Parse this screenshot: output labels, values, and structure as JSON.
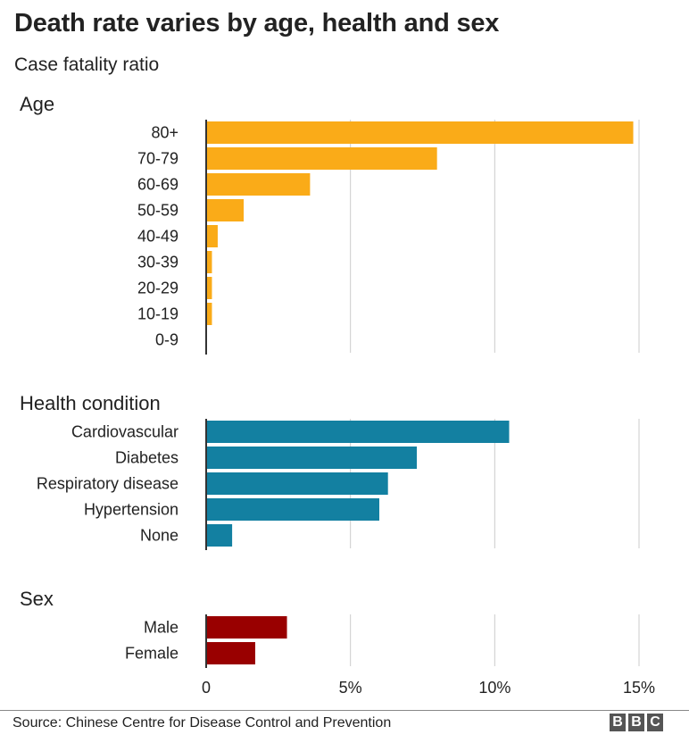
{
  "title": "Death rate varies by age, health and sex",
  "subtitle": "Case fatality ratio",
  "source": "Source: Chinese Centre for Disease Control and Prevention",
  "logo": [
    "B",
    "B",
    "C"
  ],
  "chart_data": {
    "type": "bar",
    "orientation": "horizontal",
    "xlim": [
      0,
      15
    ],
    "ticks": [
      {
        "value": 0,
        "label": "0"
      },
      {
        "value": 5,
        "label": "5%"
      },
      {
        "value": 10,
        "label": "10%"
      },
      {
        "value": 15,
        "label": "15%"
      }
    ],
    "grid": true,
    "panels": [
      {
        "name": "Age",
        "color": "#FAAB18",
        "categories": [
          "80+",
          "70-79",
          "60-69",
          "50-59",
          "40-49",
          "30-39",
          "20-29",
          "10-19",
          "0-9"
        ],
        "values": [
          14.8,
          8.0,
          3.6,
          1.3,
          0.4,
          0.2,
          0.2,
          0.2,
          0.0
        ]
      },
      {
        "name": "Health condition",
        "color": "#1380A1",
        "categories": [
          "Cardiovascular",
          "Diabetes",
          "Respiratory disease",
          "Hypertension",
          "None"
        ],
        "values": [
          10.5,
          7.3,
          6.3,
          6.0,
          0.9
        ]
      },
      {
        "name": "Sex",
        "color": "#990000",
        "categories": [
          "Male",
          "Female"
        ],
        "values": [
          2.8,
          1.7
        ]
      }
    ]
  }
}
